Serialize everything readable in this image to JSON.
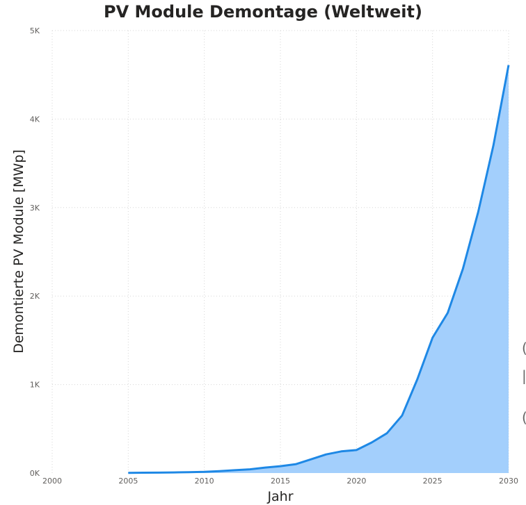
{
  "chart_data": {
    "type": "area",
    "title": "PV Module Demontage (Weltweit)",
    "xlabel": "Jahr",
    "ylabel": "Demontierte PV Module [MWp]",
    "x": [
      2005,
      2006,
      2007,
      2008,
      2009,
      2010,
      2011,
      2012,
      2013,
      2014,
      2015,
      2016,
      2017,
      2018,
      2019,
      2020,
      2021,
      2022,
      2023,
      2024,
      2025,
      2026,
      2027,
      2028,
      2029,
      2030
    ],
    "series": [
      {
        "values": [
          2,
          4,
          5,
          7,
          10,
          14,
          22,
          32,
          42,
          62,
          78,
          100,
          155,
          210,
          245,
          260,
          345,
          450,
          650,
          1060,
          1530,
          1810,
          2310,
          2950,
          3700,
          4610
        ]
      }
    ],
    "xlim": [
      2000,
      2030
    ],
    "ylim": [
      0,
      5000
    ],
    "x_ticks": [
      "2000",
      "2005",
      "2010",
      "2015",
      "2020",
      "2025",
      "2030"
    ],
    "y_ticks": [
      "0K",
      "1K",
      "2K",
      "3K",
      "4K",
      "5K"
    ],
    "grid": true,
    "legend": "none",
    "colors": {
      "line": "#1e88e5",
      "fill": "#a3cffc"
    }
  }
}
